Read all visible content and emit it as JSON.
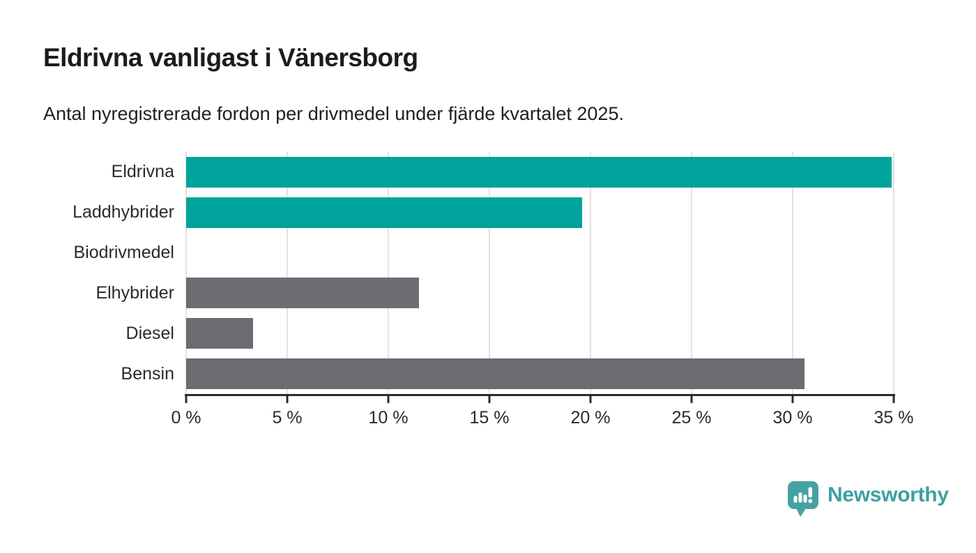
{
  "header": {
    "title": "Eldrivna vanligast i Vänersborg",
    "subtitle": "Antal nyregistrerade fordon per drivmedel under fjärde kvartalet 2025."
  },
  "chart_data": {
    "type": "bar",
    "orientation": "horizontal",
    "title": "Eldrivna vanligast i Vänersborg",
    "subtitle": "Antal nyregistrerade fordon per drivmedel under fjärde kvartalet 2025.",
    "categories": [
      "Eldrivna",
      "Laddhybrider",
      "Biodrivmedel",
      "Elhybrider",
      "Diesel",
      "Bensin"
    ],
    "values": [
      34.9,
      19.6,
      0,
      11.5,
      3.3,
      30.6
    ],
    "unit": "%",
    "xlim": [
      0,
      35
    ],
    "xticks": [
      0,
      5,
      10,
      15,
      20,
      25,
      30,
      35
    ],
    "xtick_labels": [
      "0 %",
      "5 %",
      "10 %",
      "15 %",
      "20 %",
      "25 %",
      "30 %",
      "35 %"
    ],
    "bar_colors": [
      "#00a39b",
      "#00a39b",
      "#6c6c72",
      "#6c6c72",
      "#6c6c72",
      "#6c6c72"
    ],
    "grid": true,
    "legend": null,
    "ylabel": "",
    "xlabel": ""
  },
  "footer": {
    "brand": "Newsworthy"
  },
  "colors": {
    "accent_teal": "#00a39b",
    "bar_gray": "#6c6c72",
    "gridline": "#e3e3e3",
    "axis": "#2b2b2b",
    "title_text": "#1c1c1a",
    "logo_teal": "#45a2a4",
    "logo_text": "#3da0a2"
  }
}
